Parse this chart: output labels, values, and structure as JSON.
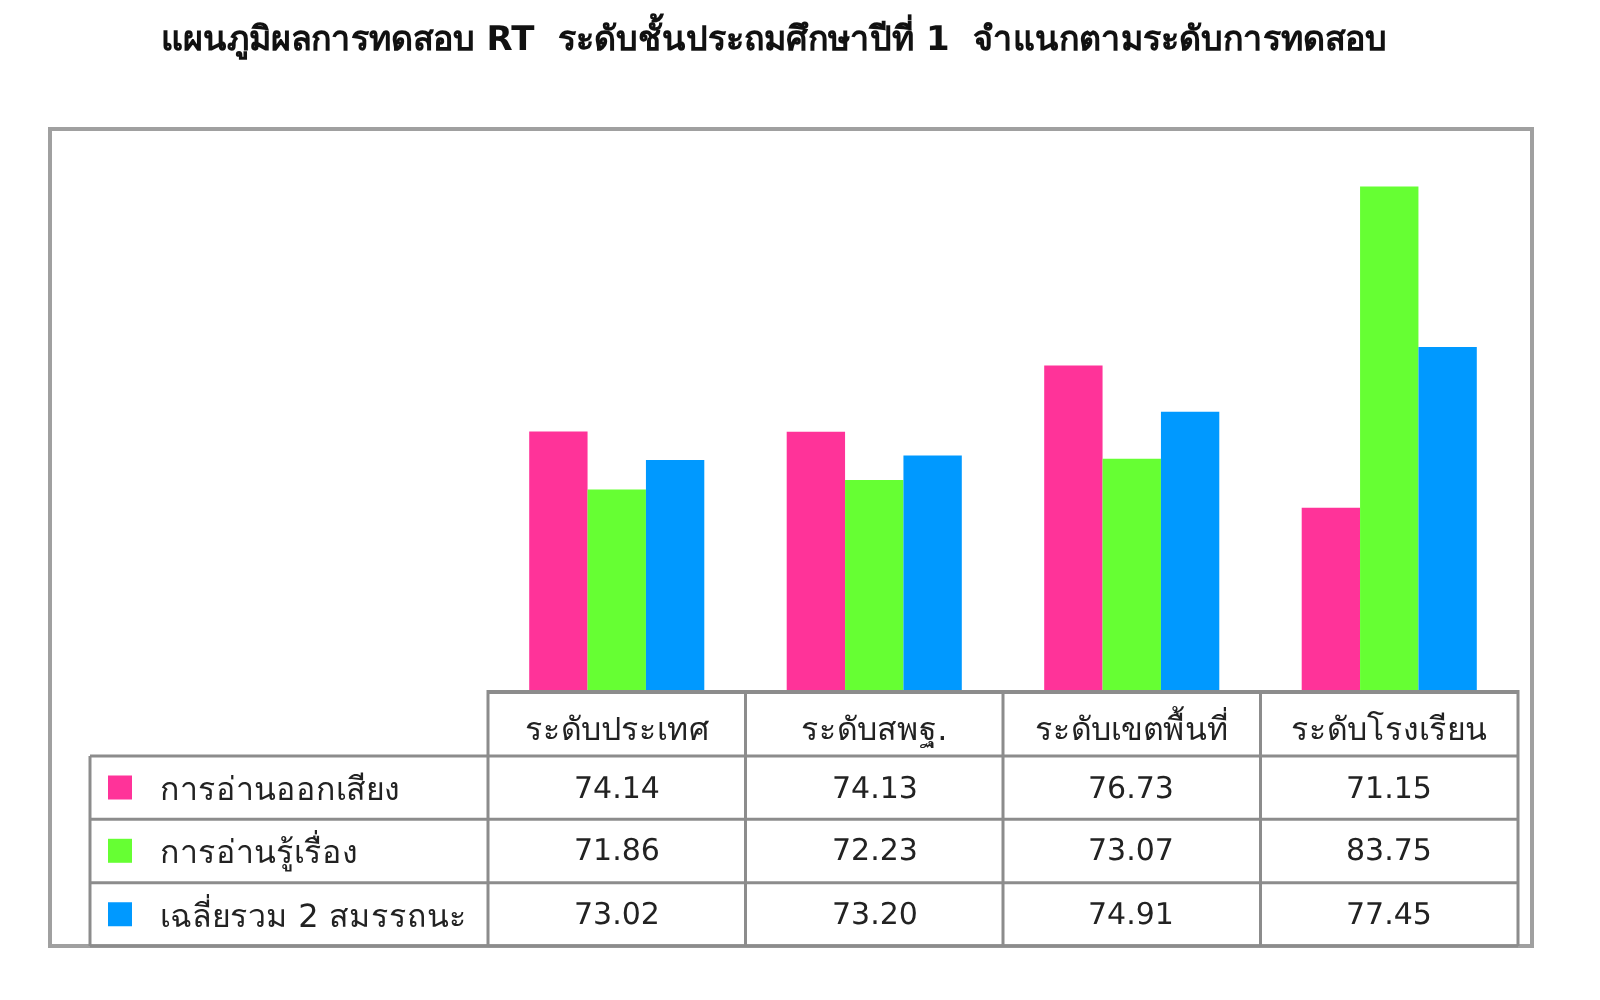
{
  "chart_data": {
    "type": "bar",
    "title": "แผนภูมิผลการทดสอบ RT  ระดับชั้นประถมศึกษาปีที่ 1  จำแนกตามระดับการทดสอบ",
    "categories": [
      "ระดับประเทศ",
      "ระดับสพฐ.",
      "ระดับเขตพื้นที่",
      "ระดับโรงเรียน"
    ],
    "series": [
      {
        "name": "การอ่านออกเสียง",
        "color": "#ff3399",
        "values": [
          74.14,
          74.13,
          76.73,
          71.15
        ],
        "value_labels": [
          "74.14",
          "74.13",
          "76.73",
          "71.15"
        ]
      },
      {
        "name": "การอ่านรู้เรื่อง",
        "color": "#66ff33",
        "values": [
          71.86,
          72.23,
          73.07,
          83.75
        ],
        "value_labels": [
          "71.86",
          "72.23",
          "73.07",
          "83.75"
        ]
      },
      {
        "name": "เฉลี่ยรวม 2 สมรรถนะ",
        "color": "#0099ff",
        "values": [
          73.02,
          73.2,
          74.91,
          77.45
        ],
        "value_labels": [
          "73.02",
          "73.20",
          "74.91",
          "77.45"
        ]
      }
    ],
    "ylim": [
      64,
      86
    ],
    "tick_labels": "x",
    "legend": "bottom left"
  }
}
